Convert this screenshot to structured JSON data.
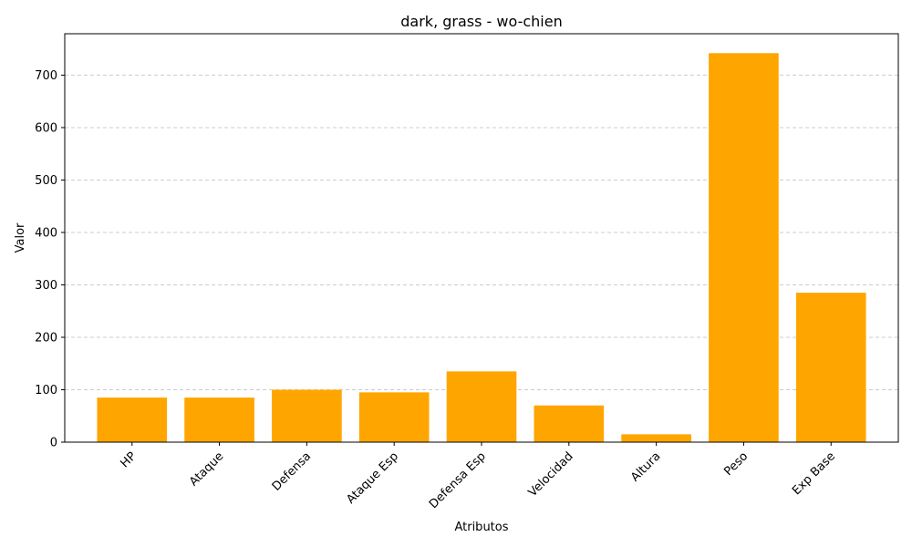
{
  "chart_data": {
    "type": "bar",
    "title": "dark, grass - wo-chien",
    "xlabel": "Atributos",
    "ylabel": "Valor",
    "categories": [
      "HP",
      "Ataque",
      "Defensa",
      "Ataque Esp",
      "Defensa Esp",
      "Velocidad",
      "Altura",
      "Peso",
      "Exp Base"
    ],
    "values": [
      85,
      85,
      100,
      95,
      135,
      70,
      15,
      742,
      285
    ],
    "ylim": [
      0,
      779
    ],
    "yticks": [
      0,
      100,
      200,
      300,
      400,
      500,
      600,
      700
    ],
    "grid": "y-dashed",
    "bar_color": "#FFA500"
  }
}
